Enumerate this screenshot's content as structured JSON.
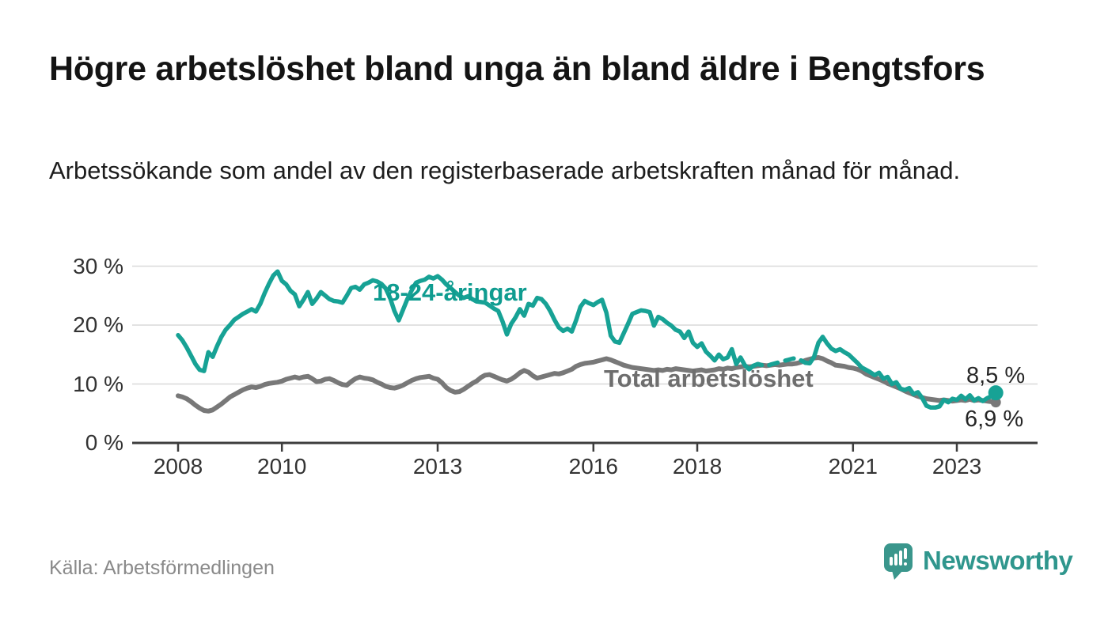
{
  "header": {
    "title": "Högre arbetslöshet bland unga än bland äldre i Bengtsfors",
    "subtitle": "Arbetssökande som andel av den registerbaserade arbetskraften månad för månad."
  },
  "footer": {
    "source": "Källa: Arbetsförmedlingen",
    "brand": "Newsworthy"
  },
  "chart_data": {
    "type": "line",
    "title": "Högre arbetslöshet bland unga än bland äldre i Bengtsfors",
    "subtitle": "Arbetssökande som andel av den registerbaserade arbetskraften månad för månad.",
    "source": "Källa: Arbetsförmedlingen",
    "unit": "%",
    "frequency": "monthly",
    "x_start": "2008-01",
    "x_end": "2023-10",
    "ylim": [
      0,
      30
    ],
    "grid": "horizontal",
    "legend": "inline-labels",
    "y_ticks": [
      {
        "value": 0,
        "label": "0 %"
      },
      {
        "value": 10,
        "label": "10 %"
      },
      {
        "value": 20,
        "label": "20 %"
      },
      {
        "value": 30,
        "label": "30 %"
      }
    ],
    "x_ticks": [
      {
        "year": 2008,
        "label": "2008"
      },
      {
        "year": 2010,
        "label": "2010"
      },
      {
        "year": 2013,
        "label": "2013"
      },
      {
        "year": 2016,
        "label": "2016"
      },
      {
        "year": 2018,
        "label": "2018"
      },
      {
        "year": 2021,
        "label": "2021"
      },
      {
        "year": 2023,
        "label": "2023"
      }
    ],
    "series": [
      {
        "name": "18-24-åringar",
        "color": "#17a295",
        "end_value": 8.5,
        "end_label": "8,5 %",
        "dashed_segment": {
          "start_index": 133,
          "end_index": 145
        },
        "values": [
          18.3,
          17.4,
          16.2,
          14.8,
          13.4,
          12.4,
          12.2,
          15.4,
          14.6,
          16.4,
          18.0,
          19.2,
          20.0,
          20.9,
          21.4,
          21.9,
          22.3,
          22.7,
          22.3,
          23.6,
          25.4,
          27.0,
          28.4,
          29.1,
          27.5,
          26.9,
          25.8,
          25.2,
          23.2,
          24.3,
          25.6,
          23.6,
          24.5,
          25.6,
          25.0,
          24.4,
          24.1,
          24.0,
          23.8,
          25.0,
          26.3,
          26.5,
          26.0,
          26.9,
          27.2,
          27.6,
          27.4,
          27.0,
          26.2,
          24.6,
          22.4,
          20.8,
          22.6,
          24.4,
          25.9,
          27.2,
          27.5,
          27.7,
          28.2,
          27.9,
          28.3,
          27.7,
          26.9,
          26.3,
          25.6,
          25.0,
          24.6,
          24.9,
          24.4,
          24.0,
          23.9,
          23.8,
          23.3,
          22.8,
          22.4,
          20.6,
          18.4,
          20.2,
          21.3,
          22.7,
          21.6,
          23.6,
          23.3,
          24.6,
          24.4,
          23.6,
          22.4,
          20.9,
          19.6,
          19.0,
          19.4,
          18.9,
          20.8,
          23.1,
          24.1,
          23.7,
          23.4,
          23.9,
          24.3,
          22.1,
          18.2,
          17.2,
          17.0,
          18.6,
          20.2,
          21.9,
          22.2,
          22.5,
          22.4,
          22.2,
          19.9,
          21.4,
          21.0,
          20.4,
          19.9,
          19.2,
          18.9,
          17.8,
          18.9,
          17.0,
          16.3,
          16.9,
          15.5,
          14.8,
          14.0,
          15.0,
          14.2,
          14.5,
          15.9,
          13.4,
          14.5,
          13.2,
          12.5,
          13.1,
          13.4,
          13.2,
          13.0,
          13.3,
          13.5,
          13.7,
          13.9,
          14.1,
          14.3,
          14.4,
          14.0,
          13.6,
          13.5,
          14.6,
          17.0,
          18.0,
          16.9,
          16.0,
          15.6,
          15.9,
          15.4,
          15.0,
          14.3,
          13.6,
          12.8,
          12.4,
          12.0,
          11.5,
          11.9,
          10.9,
          11.2,
          10.0,
          10.3,
          9.2,
          9.0,
          9.3,
          8.3,
          8.6,
          7.6,
          6.3,
          6.0,
          6.0,
          6.2,
          7.3,
          6.9,
          7.5,
          7.3,
          8.0,
          7.4,
          8.1,
          7.2,
          7.6,
          7.1,
          7.6,
          7.9,
          8.5
        ]
      },
      {
        "name": "Total arbetslöshet",
        "color": "#787878",
        "end_value": 6.9,
        "end_label": "6,9 %",
        "values": [
          8.0,
          7.8,
          7.5,
          7.0,
          6.4,
          5.9,
          5.5,
          5.4,
          5.6,
          6.1,
          6.6,
          7.2,
          7.8,
          8.2,
          8.6,
          9.0,
          9.3,
          9.5,
          9.4,
          9.6,
          9.9,
          10.1,
          10.2,
          10.3,
          10.5,
          10.8,
          11.0,
          11.2,
          11.0,
          11.2,
          11.3,
          10.9,
          10.4,
          10.5,
          10.8,
          10.9,
          10.6,
          10.2,
          9.9,
          9.8,
          10.4,
          10.9,
          11.2,
          11.0,
          10.9,
          10.7,
          10.3,
          10.0,
          9.6,
          9.4,
          9.3,
          9.5,
          9.8,
          10.2,
          10.6,
          10.9,
          11.1,
          11.2,
          11.3,
          11.0,
          10.8,
          10.2,
          9.4,
          8.9,
          8.6,
          8.7,
          9.1,
          9.6,
          10.1,
          10.5,
          11.1,
          11.5,
          11.6,
          11.3,
          11.0,
          10.7,
          10.5,
          10.8,
          11.3,
          11.9,
          12.3,
          12.0,
          11.4,
          11.0,
          11.2,
          11.4,
          11.6,
          11.8,
          11.7,
          11.9,
          12.2,
          12.5,
          13.0,
          13.3,
          13.5,
          13.6,
          13.7,
          13.9,
          14.1,
          14.3,
          14.1,
          13.8,
          13.5,
          13.2,
          13.0,
          12.8,
          12.7,
          12.6,
          12.5,
          12.4,
          12.3,
          12.4,
          12.3,
          12.5,
          12.4,
          12.6,
          12.5,
          12.4,
          12.3,
          12.2,
          12.3,
          12.4,
          12.2,
          12.3,
          12.4,
          12.6,
          12.5,
          12.7,
          12.6,
          12.8,
          12.9,
          13.0,
          12.9,
          13.0,
          13.1,
          13.2,
          13.1,
          13.2,
          13.3,
          13.2,
          13.3,
          13.4,
          13.4,
          13.5,
          13.7,
          14.0,
          14.2,
          14.4,
          14.5,
          14.3,
          13.9,
          13.6,
          13.2,
          13.1,
          13.0,
          12.8,
          12.7,
          12.5,
          12.2,
          11.7,
          11.4,
          11.1,
          10.8,
          10.5,
          10.1,
          9.8,
          9.5,
          9.2,
          8.8,
          8.5,
          8.2,
          7.9,
          7.7,
          7.5,
          7.4,
          7.3,
          7.2,
          7.3,
          7.2,
          7.1,
          7.2,
          7.3,
          7.2,
          7.4,
          7.2,
          7.3,
          7.2,
          7.1,
          7.0,
          6.9
        ]
      }
    ]
  }
}
